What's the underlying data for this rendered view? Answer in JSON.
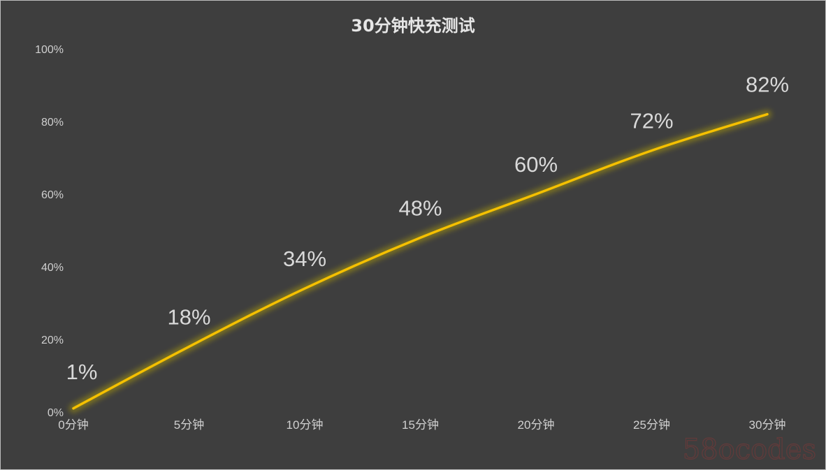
{
  "chart_data": {
    "type": "line",
    "title": "30分钟快充测试",
    "categories": [
      "0分钟",
      "5分钟",
      "10分钟",
      "15分钟",
      "20分钟",
      "25分钟",
      "30分钟"
    ],
    "series": [
      {
        "values": [
          1,
          18,
          34,
          48,
          60,
          72,
          82
        ],
        "labels": [
          "1%",
          "18%",
          "34%",
          "48%",
          "60%",
          "72%",
          "82%"
        ],
        "color": "#f5c000"
      }
    ],
    "yticks": [
      "0%",
      "20%",
      "40%",
      "60%",
      "80%",
      "100%"
    ],
    "ylim": [
      0,
      100
    ],
    "grid": false,
    "legend": "none"
  },
  "watermark": "58ocodes",
  "colors": {
    "background": "#3e3e3e",
    "line": "#f5c000",
    "text": "#d0d0d0"
  }
}
